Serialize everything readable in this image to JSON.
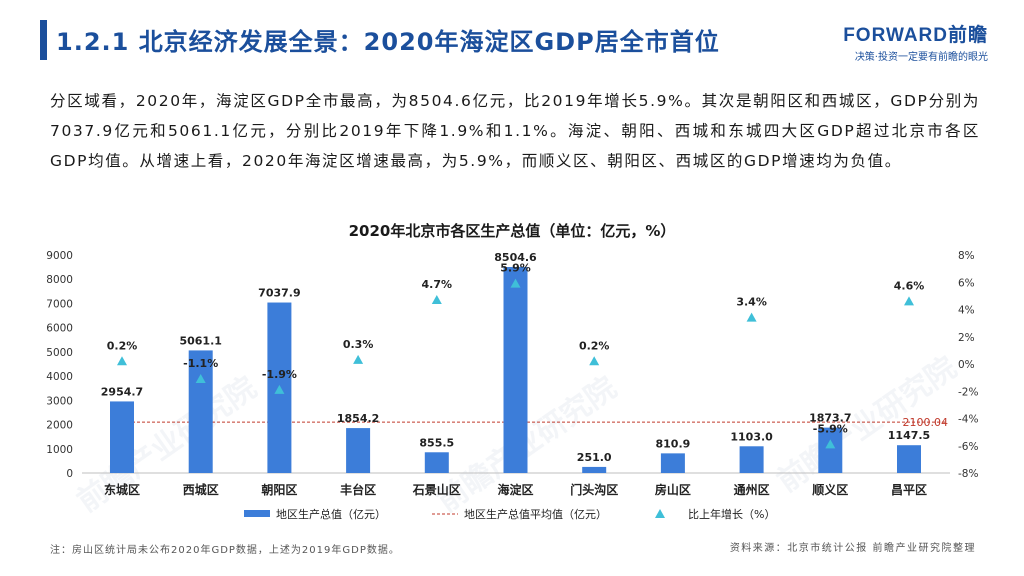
{
  "header": {
    "title": "1.2.1 北京经济发展全景：2020年海淀区GDP居全市首位",
    "logo": "FORWARD前瞻",
    "slogan": "决策·投资一定要有前瞻的眼光"
  },
  "paragraph": "分区域看，2020年，海淀区GDP全市最高，为8504.6亿元，比2019年增长5.9%。其次是朝阳区和西城区，GDP分别为7037.9亿元和5061.1亿元，分别比2019年下降1.9%和1.1%。海淀、朝阳、西城和东城四大区GDP超过北京市各区GDP均值。从增速上看，2020年海淀区增速最高，为5.9%，而顺义区、朝阳区、西城区的GDP增速均为负值。",
  "footer": {
    "note": "注：房山区统计局未公布2020年GDP数据，上述为2019年GDP数据。",
    "source": "资料来源：北京市统计公报 前瞻产业研究院整理"
  },
  "colors": {
    "bar": "#3c7dd9",
    "avg_line": "#c0392b",
    "marker": "#3fbfd8",
    "title": "#1b4f9c"
  },
  "chart_data": {
    "type": "bar",
    "title": "2020年北京市各区生产总值（单位：亿元，%）",
    "categories": [
      "东城区",
      "西城区",
      "朝阳区",
      "丰台区",
      "石景山区",
      "海淀区",
      "门头沟区",
      "房山区",
      "通州区",
      "顺义区",
      "昌平区"
    ],
    "series": [
      {
        "name": "地区生产总值（亿元）",
        "type": "bar",
        "axis": "left",
        "values": [
          2954.7,
          5061.1,
          7037.9,
          1854.2,
          855.5,
          8504.6,
          251.0,
          810.9,
          1103.0,
          1873.7,
          1147.5
        ],
        "labels": [
          "2954.7",
          "5061.1",
          "7037.9",
          "1854.2",
          "855.5",
          "8504.6",
          "251.0",
          "810.9",
          "1103.0",
          "1873.7",
          "1147.5"
        ]
      },
      {
        "name": "地区生产总值平均值（亿元）",
        "type": "line",
        "axis": "left",
        "value": 2100.04,
        "label": "2100.04"
      },
      {
        "name": "比上年增长（%）",
        "type": "scatter",
        "axis": "right",
        "values": [
          0.2,
          -1.1,
          -1.9,
          0.3,
          4.7,
          5.9,
          0.2,
          null,
          3.4,
          -5.9,
          4.6
        ],
        "labels": [
          "0.2%",
          "-1.1%",
          "-1.9%",
          "0.3%",
          "4.7%",
          "5.9%",
          "0.2%",
          "",
          "3.4%",
          "-5.9%",
          "4.6%"
        ]
      }
    ],
    "y_left": {
      "min": 0,
      "max": 9000,
      "ticks": [
        "0",
        "1000",
        "2000",
        "3000",
        "4000",
        "5000",
        "6000",
        "7000",
        "8000",
        "9000"
      ]
    },
    "y_right": {
      "min": -8,
      "max": 8,
      "ticks": [
        "-8%",
        "-6%",
        "-4%",
        "-2%",
        "0%",
        "2%",
        "4%",
        "6%",
        "8%"
      ]
    },
    "grid": false,
    "legend_position": "bottom"
  }
}
